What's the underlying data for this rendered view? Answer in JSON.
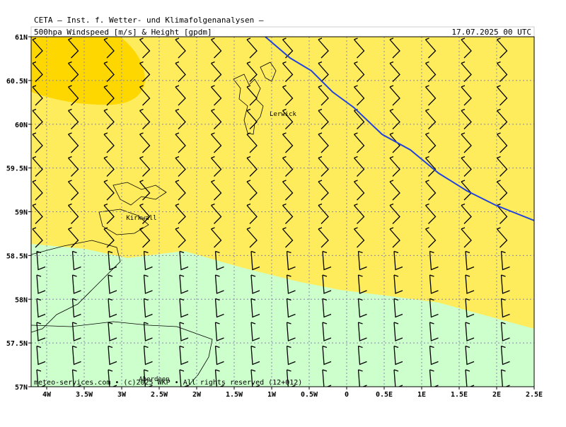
{
  "header": {
    "title": "CETA — Inst. f. Wetter- und Klimafolgenanalysen —",
    "subtitle": "500hpa Windspeed [m/s] & Height [gpdm]",
    "datetime": "17.07.2025 00 UTC"
  },
  "axes": {
    "lat_labels": [
      "61N",
      "60.5N",
      "60N",
      "59.5N",
      "59N",
      "58.5N",
      "58N",
      "57.5N",
      "57N"
    ],
    "lon_labels": [
      "4W",
      "3.5W",
      "3W",
      "2.5W",
      "2W",
      "1.5W",
      "1W",
      "0.5W",
      "0",
      "0.5E",
      "1E",
      "1.5E",
      "2E",
      "2.5E"
    ]
  },
  "places": [
    "Lerwick",
    "Kirkwall",
    "Aberdeen"
  ],
  "footer": "meteo-services.com • (c)2025 WKP • All rights reserved (12+012)"
}
